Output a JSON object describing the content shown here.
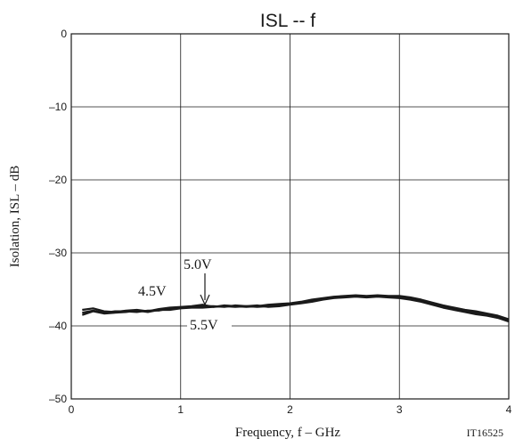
{
  "chart_data": {
    "type": "line",
    "title": "ISL -- f",
    "xlabel": "Frequency, f  –  GHz",
    "ylabel": "Isolation, ISL  –  dB",
    "figure_code": "IT16525",
    "xlim": [
      0,
      4
    ],
    "ylim": [
      -50,
      0
    ],
    "x_ticks": [
      0,
      1,
      2,
      3,
      4
    ],
    "y_ticks": [
      0,
      -10,
      -20,
      -30,
      -40,
      -50
    ],
    "y_tick_labels": [
      "0",
      "–10",
      "–20",
      "–30",
      "–40",
      "–50"
    ],
    "grid": true,
    "annotations": [
      {
        "text": "4.5V"
      },
      {
        "text": "5.0V"
      },
      {
        "text": "5.5V"
      }
    ],
    "series": [
      {
        "name": "4.5V",
        "x": [
          0.1,
          0.2,
          0.3,
          0.4,
          0.5,
          0.6,
          0.7,
          0.8,
          0.9,
          1.0,
          1.1,
          1.2,
          1.3,
          1.4,
          1.5,
          1.6,
          1.7,
          1.8,
          1.9,
          2.0,
          2.1,
          2.2,
          2.3,
          2.4,
          2.5,
          2.6,
          2.7,
          2.8,
          2.9,
          3.0,
          3.1,
          3.2,
          3.3,
          3.4,
          3.5,
          3.6,
          3.7,
          3.8,
          3.9,
          4.0
        ],
        "y": [
          -37.8,
          -37.6,
          -38.0,
          -38.1,
          -37.9,
          -37.8,
          -38.0,
          -37.7,
          -37.5,
          -37.4,
          -37.3,
          -37.1,
          -37.4,
          -37.2,
          -37.3,
          -37.4,
          -37.3,
          -37.1,
          -37.0,
          -36.9,
          -36.7,
          -36.4,
          -36.2,
          -36.0,
          -35.9,
          -35.8,
          -35.9,
          -35.8,
          -35.9,
          -35.9,
          -36.1,
          -36.4,
          -36.8,
          -37.2,
          -37.5,
          -37.8,
          -38.0,
          -38.3,
          -38.6,
          -39.1
        ]
      },
      {
        "name": "5.0V",
        "x": [
          0.1,
          0.2,
          0.3,
          0.4,
          0.5,
          0.6,
          0.7,
          0.8,
          0.9,
          1.0,
          1.1,
          1.2,
          1.3,
          1.4,
          1.5,
          1.6,
          1.7,
          1.8,
          1.9,
          2.0,
          2.1,
          2.2,
          2.3,
          2.4,
          2.5,
          2.6,
          2.7,
          2.8,
          2.9,
          3.0,
          3.1,
          3.2,
          3.3,
          3.4,
          3.5,
          3.6,
          3.7,
          3.8,
          3.9,
          4.0
        ],
        "y": [
          -38.2,
          -37.9,
          -38.2,
          -38.0,
          -38.0,
          -38.1,
          -37.9,
          -37.9,
          -37.6,
          -37.5,
          -37.4,
          -37.3,
          -37.3,
          -37.4,
          -37.2,
          -37.3,
          -37.4,
          -37.3,
          -37.2,
          -37.0,
          -36.8,
          -36.5,
          -36.3,
          -36.1,
          -36.0,
          -35.9,
          -36.0,
          -35.9,
          -36.0,
          -36.1,
          -36.3,
          -36.6,
          -37.0,
          -37.4,
          -37.7,
          -38.0,
          -38.2,
          -38.4,
          -38.7,
          -39.2
        ]
      },
      {
        "name": "5.5V",
        "x": [
          0.1,
          0.2,
          0.3,
          0.4,
          0.5,
          0.6,
          0.7,
          0.8,
          0.9,
          1.0,
          1.1,
          1.2,
          1.3,
          1.4,
          1.5,
          1.6,
          1.7,
          1.8,
          1.9,
          2.0,
          2.1,
          2.2,
          2.3,
          2.4,
          2.5,
          2.6,
          2.7,
          2.8,
          2.9,
          3.0,
          3.1,
          3.2,
          3.3,
          3.4,
          3.5,
          3.6,
          3.7,
          3.8,
          3.9,
          4.0
        ],
        "y": [
          -38.5,
          -38.0,
          -38.3,
          -38.2,
          -38.1,
          -37.9,
          -38.1,
          -37.8,
          -37.8,
          -37.6,
          -37.5,
          -37.5,
          -37.4,
          -37.3,
          -37.4,
          -37.3,
          -37.2,
          -37.4,
          -37.3,
          -37.1,
          -36.9,
          -36.7,
          -36.4,
          -36.2,
          -36.1,
          -36.0,
          -36.1,
          -36.0,
          -36.1,
          -36.2,
          -36.4,
          -36.7,
          -37.1,
          -37.5,
          -37.8,
          -38.1,
          -38.4,
          -38.6,
          -38.9,
          -39.4
        ]
      }
    ],
    "color": "#1a1a1a"
  }
}
